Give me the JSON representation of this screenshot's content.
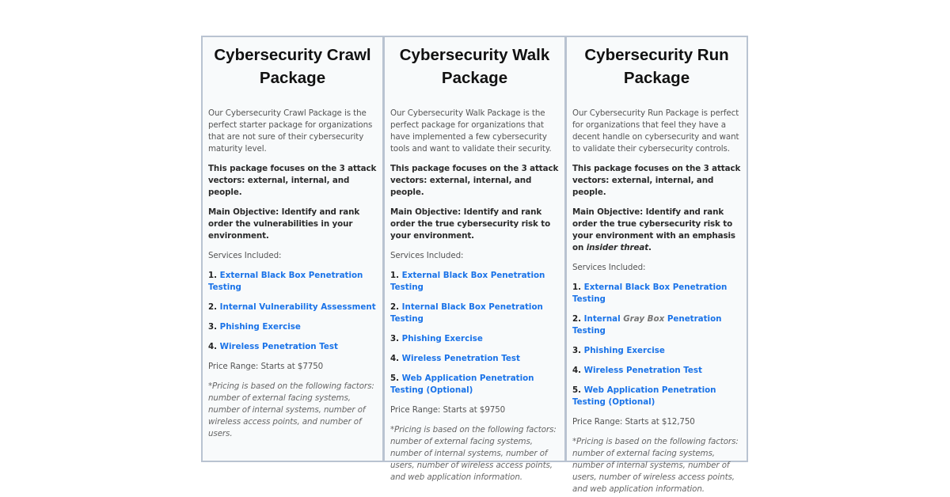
{
  "columns": [
    {
      "title": "Cybersecurity Crawl Package",
      "intro": "Our Cybersecurity Crawl Package is the perfect starter package for organizations that are not sure of their cybersecurity maturity level.",
      "focus": "This package focuses on the 3 attack vectors: external, internal, and people.",
      "objective": {
        "pre": "Main Objective: Identify and rank order the vulnerabilities in your environment."
      },
      "services_label": "Services Included:",
      "services": [
        {
          "num": "1. ",
          "pre": "External Black Box Penetration Testing"
        },
        {
          "num": "2. ",
          "pre": "Internal Vulnerability Assessment"
        },
        {
          "num": "3. ",
          "pre": "Phishing Exercise"
        },
        {
          "num": "4. ",
          "pre": "Wireless Penetration Test"
        }
      ],
      "price": "Price Range: Starts at $7750",
      "note": "*Pricing is based on the following factors: number of external facing systems, number of internal systems, number of wireless access points, and number of users."
    },
    {
      "title": "Cybersecurity Walk Package",
      "intro": "Our Cybersecurity Walk Package is the perfect package for organizations that have implemented a few cybersecurity tools and want to validate their security.",
      "focus": "This package focuses on the 3 attack vectors: external, internal, and people.",
      "objective": {
        "pre": "Main Objective: Identify and rank order the true cybersecurity risk to your environment."
      },
      "services_label": "Services Included:",
      "services": [
        {
          "num": "1. ",
          "pre": "External Black Box Penetration Testing"
        },
        {
          "num": "2. ",
          "pre": "Internal Black Box Penetration Testing"
        },
        {
          "num": "3. ",
          "pre": "Phishing Exercise"
        },
        {
          "num": "4. ",
          "pre": "Wireless Penetration Test"
        },
        {
          "num": "5. ",
          "pre": "Web Application Penetration Testing (Optional)"
        }
      ],
      "price": "Price Range: Starts at $9750",
      "note": "*Pricing is based on the following factors: number of external facing systems, number of internal systems, number of users, number of wireless access points, and web application information."
    },
    {
      "title": "Cybersecurity Run Package",
      "intro": "Our Cybersecurity Run Package is perfect for organizations that feel they have a decent handle on cybersecurity and want to validate their cybersecurity controls.",
      "focus": "This package focuses on the 3 attack vectors: external, internal, and people.",
      "objective": {
        "pre": "Main Objective: Identify and rank order the true cybersecurity risk to your environment with an emphasis on ",
        "em": "insider threat",
        "post": "."
      },
      "services_label": "Services Included:",
      "services": [
        {
          "num": "1. ",
          "pre": "External Black Box Penetration Testing"
        },
        {
          "num": "2. ",
          "pre": "Internal ",
          "em": "Gray Box",
          "post": " Penetration Testing"
        },
        {
          "num": "3. ",
          "pre": "Phishing Exercise"
        },
        {
          "num": "4. ",
          "pre": "Wireless Penetration Test"
        },
        {
          "num": "5. ",
          "pre": "Web Application Penetration Testing (Optional)"
        }
      ],
      "price": "Price Range: Starts at $12,750",
      "note": "*Pricing is based on the following factors: number of external facing systems, number of internal systems, number of users, number of wireless access points, and web application information."
    }
  ],
  "colors": {
    "link": "#1a73e8",
    "border": "#b9c3d1",
    "panel_bg": "#f8fafb"
  }
}
